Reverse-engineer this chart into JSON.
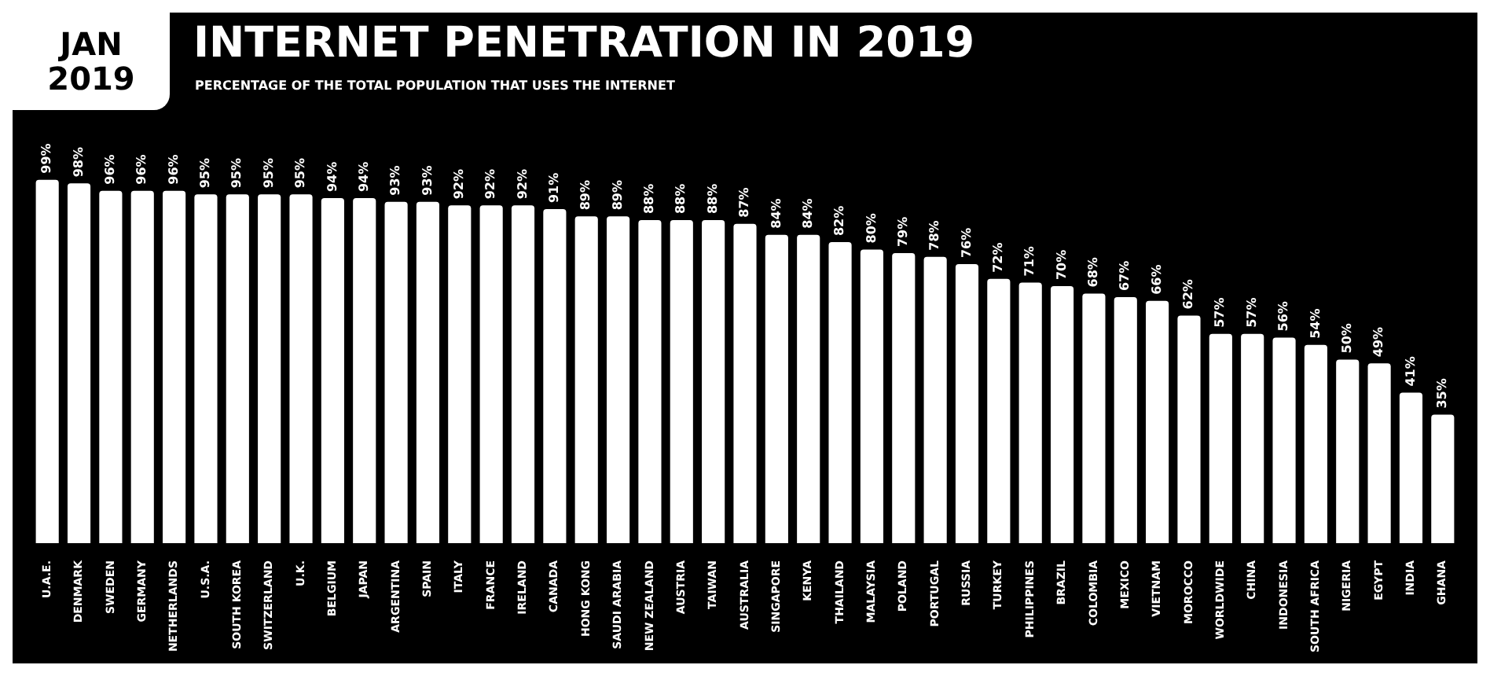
{
  "chart_data": {
    "type": "bar",
    "title": "INTERNET PENETRATION IN 2019",
    "subtitle": "PERCENTAGE OF THE TOTAL POPULATION THAT USES THE INTERNET",
    "annotations": [
      "JAN 2019"
    ],
    "categories": [
      "U.A.E.",
      "DENMARK",
      "SWEDEN",
      "GERMANY",
      "NETHERLANDS",
      "U.S.A.",
      "SOUTH KOREA",
      "SWITZERLAND",
      "U.K.",
      "BELGIUM",
      "JAPAN",
      "ARGENTINA",
      "SPAIN",
      "ITALY",
      "FRANCE",
      "IRELAND",
      "CANADA",
      "HONG KONG",
      "SAUDI ARABIA",
      "NEW ZEALAND",
      "AUSTRIA",
      "TAIWAN",
      "AUSTRALIA",
      "SINGAPORE",
      "KENYA",
      "THAILAND",
      "MALAYSIA",
      "POLAND",
      "PORTUGAL",
      "RUSSIA",
      "TURKEY",
      "PHILIPPINES",
      "BRAZIL",
      "COLOMBIA",
      "MEXICO",
      "VIETNAM",
      "MOROCCO",
      "WORLDWIDE",
      "CHINA",
      "INDONESIA",
      "SOUTH AFRICA",
      "NIGERIA",
      "EGYPT",
      "INDIA",
      "GHANA"
    ],
    "values": [
      99,
      98,
      96,
      96,
      96,
      95,
      95,
      95,
      95,
      94,
      94,
      93,
      93,
      92,
      92,
      92,
      91,
      89,
      89,
      88,
      88,
      88,
      87,
      84,
      84,
      82,
      80,
      79,
      78,
      76,
      72,
      71,
      70,
      68,
      67,
      66,
      62,
      57,
      57,
      56,
      54,
      50,
      49,
      41,
      35
    ],
    "value_labels": [
      "99%",
      "98%",
      "96%",
      "96%",
      "96%",
      "95%",
      "95%",
      "95%",
      "95%",
      "94%",
      "94%",
      "93%",
      "93%",
      "92%",
      "92%",
      "92%",
      "91%",
      "89%",
      "89%",
      "88%",
      "88%",
      "88%",
      "87%",
      "84%",
      "84%",
      "82%",
      "80%",
      "79%",
      "78%",
      "76%",
      "72%",
      "71%",
      "70%",
      "68%",
      "67%",
      "66%",
      "62%",
      "57%",
      "57%",
      "56%",
      "54%",
      "50%",
      "49%",
      "41%",
      "35%"
    ],
    "color": "#ffffff"
  }
}
